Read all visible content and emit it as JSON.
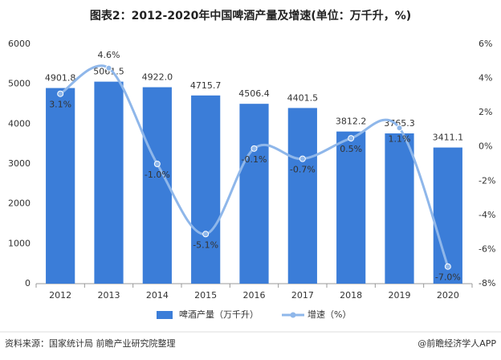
{
  "chart_data": {
    "type": "bar-line",
    "title": "图表2：2012-2020年中国啤酒产量及增速(单位：万千升，%)",
    "categories": [
      "2012",
      "2013",
      "2014",
      "2015",
      "2016",
      "2017",
      "2018",
      "2019",
      "2020"
    ],
    "series": [
      {
        "name": "啤酒产量（万千升）",
        "color": "#3b7dd8",
        "type": "bar",
        "values": [
          4901.8,
          5061.5,
          4922.0,
          4715.7,
          4506.4,
          4401.5,
          3812.2,
          3765.3,
          3411.1
        ],
        "value_labels": [
          "4901.8",
          "5061.5",
          "4922.0",
          "4715.7",
          "4506.4",
          "4401.5",
          "3812.2",
          "3765.3",
          "3411.1"
        ]
      },
      {
        "name": "增速（%）",
        "color": "#8fb7ea",
        "type": "line",
        "axis": "y2",
        "values": [
          3.1,
          4.6,
          -1.0,
          -5.1,
          -0.1,
          -0.7,
          0.5,
          1.1,
          -7.0
        ],
        "value_labels": [
          "3.1%",
          "4.6%",
          "-1.0%",
          "-5.1%",
          "-0.1%",
          "-0.7%",
          "0.5%",
          "1.1%",
          "-7.0%"
        ]
      }
    ],
    "ylim": [
      0,
      6000
    ],
    "yticks": [
      0,
      1000,
      2000,
      3000,
      4000,
      5000,
      6000
    ],
    "y2lim": [
      -8,
      6
    ],
    "y2ticks": [
      {
        "value": -8,
        "label": "-8%"
      },
      {
        "value": -6,
        "label": "-6%"
      },
      {
        "value": -4,
        "label": "-4%"
      },
      {
        "value": -2,
        "label": "-2%"
      },
      {
        "value": 0,
        "label": "0%"
      },
      {
        "value": 2,
        "label": "2%"
      },
      {
        "value": 4,
        "label": "4%"
      },
      {
        "value": 6,
        "label": "6%"
      }
    ],
    "grid": false,
    "source": "资料来源：国家统计局 前瞻产业研究院整理",
    "credit": "@前瞻经济学人APP"
  }
}
